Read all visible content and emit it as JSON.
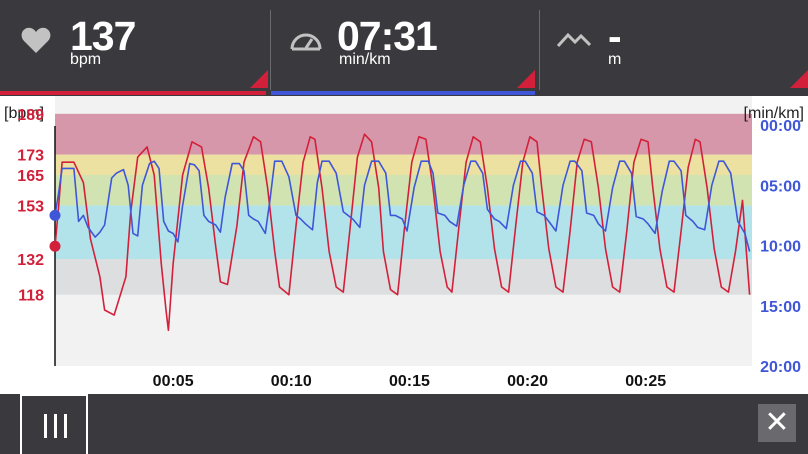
{
  "header": {
    "heart_rate": {
      "value": "137",
      "unit": "bpm",
      "icon": "heart-icon"
    },
    "pace": {
      "value": "07:31",
      "unit": "min/km",
      "icon": "speedometer-icon"
    },
    "elevation": {
      "value": "-",
      "unit": "m",
      "icon": "mountain-icon"
    }
  },
  "colors": {
    "heart_rate": "#d3203a",
    "pace": "#3f56d8",
    "zone_max": "#d797aa",
    "zone_hard": "#ece1a0",
    "zone_moderate": "#d2e3b2",
    "zone_light": "#b3e3ea",
    "zone_very_light": "#dcdedf"
  },
  "chart_data": {
    "type": "line",
    "left_axis_unit": "[bpm]",
    "right_axis_unit": "[min/km]",
    "left_axis_ticks": [
      "189",
      "173",
      "165",
      "153",
      "132",
      "118"
    ],
    "right_axis_ticks": [
      "00:00",
      "05:00",
      "10:00",
      "15:00",
      "20:00"
    ],
    "x_axis_ticks": [
      "00:05",
      "00:10",
      "00:15",
      "00:20",
      "00:25"
    ],
    "bpm_range": [
      90,
      196
    ],
    "pace_range_min": [
      0,
      20
    ],
    "time_range_min": [
      0,
      29.5
    ],
    "zones_bpm": [
      [
        173,
        189
      ],
      [
        165,
        173
      ],
      [
        153,
        165
      ],
      [
        132,
        153
      ],
      [
        118,
        132
      ]
    ],
    "series": [
      {
        "axis": "left",
        "start_marker_value": 137,
        "x": [
          0.0,
          0.15,
          0.3,
          0.8,
          1.2,
          1.5,
          1.9,
          2.1,
          2.5,
          3.0,
          3.2,
          3.5,
          3.9,
          4.2,
          4.5,
          4.7,
          4.8,
          5.0,
          5.4,
          5.8,
          6.2,
          6.5,
          6.8,
          7.0,
          7.3,
          7.7,
          8.0,
          8.4,
          8.7,
          9.0,
          9.3,
          9.5,
          9.9,
          10.2,
          10.5,
          10.8,
          11.0,
          11.3,
          11.6,
          11.9,
          12.2,
          12.5,
          12.8,
          13.1,
          13.4,
          13.7,
          13.9,
          14.2,
          14.5,
          14.8,
          15.1,
          15.4,
          15.7,
          16.0,
          16.3,
          16.6,
          16.8,
          17.1,
          17.4,
          17.7,
          18.0,
          18.3,
          18.6,
          18.9,
          19.2,
          19.5,
          19.8,
          20.1,
          20.4,
          20.6,
          20.9,
          21.2,
          21.5,
          21.8,
          22.1,
          22.4,
          22.7,
          23.0,
          23.3,
          23.6,
          23.9,
          24.2,
          24.5,
          24.8,
          25.1,
          25.3,
          25.6,
          25.9,
          26.2,
          26.5,
          26.8,
          27.1,
          27.3,
          27.6,
          27.9,
          28.2,
          28.5,
          28.8,
          29.1,
          29.4
        ],
        "y": [
          137,
          152,
          170,
          170,
          162,
          140,
          125,
          112,
          110,
          125,
          150,
          172,
          176,
          165,
          130,
          112,
          104,
          130,
          165,
          178,
          176,
          160,
          137,
          123,
          122,
          145,
          170,
          180,
          178,
          160,
          135,
          121,
          118,
          145,
          170,
          180,
          179,
          160,
          135,
          121,
          119,
          145,
          172,
          181,
          178,
          160,
          135,
          120,
          118,
          145,
          170,
          180,
          179,
          160,
          135,
          121,
          119,
          145,
          170,
          180,
          178,
          160,
          136,
          121,
          119,
          145,
          170,
          180,
          178,
          160,
          136,
          121,
          119,
          143,
          170,
          179,
          178,
          160,
          136,
          121,
          119,
          143,
          170,
          179,
          178,
          160,
          136,
          121,
          119,
          143,
          168,
          179,
          178,
          160,
          136,
          121,
          119,
          135,
          155,
          118
        ]
      },
      {
        "axis": "right",
        "start_marker_value": "07:30",
        "x": [
          0.0,
          0.15,
          0.3,
          0.5,
          0.8,
          1.0,
          1.2,
          1.4,
          1.7,
          1.9,
          2.1,
          2.4,
          2.6,
          2.9,
          3.1,
          3.3,
          3.5,
          3.7,
          4.0,
          4.2,
          4.4,
          4.6,
          4.8,
          5.0,
          5.2,
          5.4,
          5.7,
          5.9,
          6.1,
          6.3,
          6.5,
          6.8,
          7.0,
          7.2,
          7.5,
          7.8,
          8.0,
          8.2,
          8.4,
          8.6,
          8.9,
          9.1,
          9.3,
          9.6,
          9.9,
          10.2,
          10.4,
          10.6,
          10.9,
          11.1,
          11.3,
          11.6,
          11.9,
          12.2,
          12.4,
          12.6,
          12.9,
          13.1,
          13.4,
          13.7,
          14.0,
          14.2,
          14.4,
          14.7,
          14.9,
          15.2,
          15.5,
          15.8,
          16.0,
          16.2,
          16.5,
          16.7,
          17.0,
          17.3,
          17.6,
          17.8,
          18.1,
          18.3,
          18.6,
          18.8,
          19.1,
          19.4,
          19.7,
          19.9,
          20.2,
          20.4,
          20.7,
          20.9,
          21.2,
          21.5,
          21.8,
          22.0,
          22.3,
          22.5,
          22.8,
          23.0,
          23.3,
          23.6,
          23.9,
          24.1,
          24.4,
          24.6,
          24.9,
          25.1,
          25.4,
          25.7,
          26.0,
          26.2,
          26.5,
          26.7,
          27.0,
          27.2,
          27.5,
          27.8,
          28.1,
          28.3,
          28.6,
          28.9,
          29.2,
          29.4
        ],
        "y": [
          7.5,
          5.7,
          3.6,
          3.6,
          3.6,
          8.0,
          7.5,
          8.5,
          9.3,
          8.9,
          8.3,
          4.4,
          4.0,
          3.7,
          5.0,
          9.0,
          9.2,
          5.0,
          3.2,
          3.0,
          3.6,
          8.0,
          8.8,
          9.0,
          9.7,
          6.7,
          3.2,
          3.3,
          3.8,
          7.5,
          8.0,
          8.3,
          8.9,
          6.0,
          3.2,
          3.2,
          3.8,
          7.5,
          7.8,
          8.0,
          9.0,
          6.2,
          3.0,
          3.0,
          4.3,
          7.5,
          7.8,
          8.2,
          8.7,
          4.8,
          3.0,
          3.0,
          4.0,
          7.2,
          7.5,
          7.8,
          8.5,
          5.0,
          3.0,
          3.0,
          4.0,
          7.5,
          7.5,
          7.8,
          8.8,
          5.2,
          3.0,
          3.0,
          4.0,
          7.3,
          7.5,
          8.0,
          8.4,
          5.0,
          3.0,
          3.0,
          4.0,
          7.0,
          7.8,
          8.0,
          8.6,
          5.0,
          3.0,
          3.0,
          4.0,
          7.2,
          7.5,
          8.0,
          8.8,
          5.0,
          3.0,
          3.0,
          3.8,
          7.3,
          7.5,
          8.2,
          8.8,
          5.2,
          3.0,
          3.0,
          4.0,
          7.6,
          7.8,
          8.2,
          9.0,
          5.5,
          3.0,
          3.0,
          3.8,
          7.5,
          8.0,
          8.5,
          8.7,
          5.0,
          3.0,
          3.0,
          4.0,
          8.0,
          9.0,
          10.5
        ]
      }
    ]
  },
  "footer": {
    "menu_icon": "menu-icon",
    "close_label": "✕"
  }
}
